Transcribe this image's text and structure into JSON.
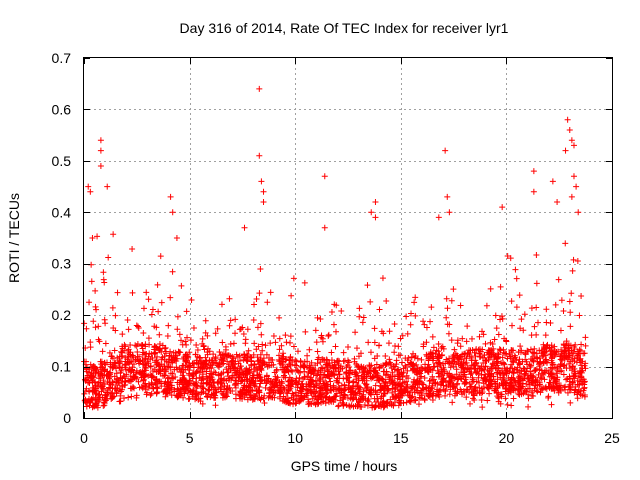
{
  "chart_data": {
    "type": "scatter",
    "title": "Day 316 of 2014, Rate Of TEC Index for receiver lyr1",
    "xlabel": "GPS time / hours",
    "ylabel": "ROTI / TECUs",
    "xlim": [
      0,
      25
    ],
    "ylim": [
      0,
      0.7
    ],
    "xticks": [
      0,
      5,
      10,
      15,
      20,
      25
    ],
    "yticks": [
      0,
      0.1,
      0.2,
      0.3,
      0.4,
      0.5,
      0.6,
      0.7
    ],
    "xtick_labels": [
      "0",
      "5",
      "10",
      "15",
      "20",
      "25"
    ],
    "ytick_labels": [
      "0",
      "0.1",
      "0.2",
      "0.3",
      "0.4",
      "0.5",
      "0.6",
      "0.7"
    ],
    "grid": true,
    "marker": "+",
    "color": "#ff0000",
    "x_range_of_data": [
      0,
      23.75
    ],
    "series": [
      {
        "name": "ROTI",
        "envelope": [
          {
            "x": 0.0,
            "base": 0.06,
            "p95": 0.26
          },
          {
            "x": 0.5,
            "base": 0.06,
            "p95": 0.34
          },
          {
            "x": 1.0,
            "base": 0.07,
            "p95": 0.32
          },
          {
            "x": 1.5,
            "base": 0.09,
            "p95": 0.3
          },
          {
            "x": 2.0,
            "base": 0.1,
            "p95": 0.28
          },
          {
            "x": 2.5,
            "base": 0.1,
            "p95": 0.27
          },
          {
            "x": 3.0,
            "base": 0.1,
            "p95": 0.26
          },
          {
            "x": 4.0,
            "base": 0.09,
            "p95": 0.3
          },
          {
            "x": 5.0,
            "base": 0.08,
            "p95": 0.24
          },
          {
            "x": 6.0,
            "base": 0.08,
            "p95": 0.2
          },
          {
            "x": 7.0,
            "base": 0.08,
            "p95": 0.24
          },
          {
            "x": 7.5,
            "base": 0.08,
            "p95": 0.28
          },
          {
            "x": 8.0,
            "base": 0.08,
            "p95": 0.26
          },
          {
            "x": 8.5,
            "base": 0.08,
            "p95": 0.3
          },
          {
            "x": 9.0,
            "base": 0.08,
            "p95": 0.25
          },
          {
            "x": 10.0,
            "base": 0.07,
            "p95": 0.22
          },
          {
            "x": 11.0,
            "base": 0.07,
            "p95": 0.24
          },
          {
            "x": 12.0,
            "base": 0.07,
            "p95": 0.2
          },
          {
            "x": 13.0,
            "base": 0.06,
            "p95": 0.22
          },
          {
            "x": 14.0,
            "base": 0.06,
            "p95": 0.24
          },
          {
            "x": 15.0,
            "base": 0.07,
            "p95": 0.22
          },
          {
            "x": 16.0,
            "base": 0.08,
            "p95": 0.24
          },
          {
            "x": 17.0,
            "base": 0.09,
            "p95": 0.3
          },
          {
            "x": 18.0,
            "base": 0.09,
            "p95": 0.27
          },
          {
            "x": 19.0,
            "base": 0.09,
            "p95": 0.24
          },
          {
            "x": 20.0,
            "base": 0.09,
            "p95": 0.28
          },
          {
            "x": 21.0,
            "base": 0.09,
            "p95": 0.26
          },
          {
            "x": 22.0,
            "base": 0.1,
            "p95": 0.3
          },
          {
            "x": 23.0,
            "base": 0.1,
            "p95": 0.34
          },
          {
            "x": 23.75,
            "base": 0.08,
            "p95": 0.26
          }
        ],
        "outliers": [
          {
            "x": 0.2,
            "y": 0.45
          },
          {
            "x": 0.3,
            "y": 0.44
          },
          {
            "x": 0.4,
            "y": 0.35
          },
          {
            "x": 0.8,
            "y": 0.54
          },
          {
            "x": 0.8,
            "y": 0.52
          },
          {
            "x": 0.8,
            "y": 0.49
          },
          {
            "x": 1.1,
            "y": 0.45
          },
          {
            "x": 4.1,
            "y": 0.43
          },
          {
            "x": 4.2,
            "y": 0.4
          },
          {
            "x": 4.4,
            "y": 0.35
          },
          {
            "x": 7.6,
            "y": 0.37
          },
          {
            "x": 8.3,
            "y": 0.64
          },
          {
            "x": 8.3,
            "y": 0.51
          },
          {
            "x": 8.4,
            "y": 0.46
          },
          {
            "x": 8.5,
            "y": 0.44
          },
          {
            "x": 8.5,
            "y": 0.42
          },
          {
            "x": 11.4,
            "y": 0.47
          },
          {
            "x": 11.4,
            "y": 0.37
          },
          {
            "x": 13.6,
            "y": 0.4
          },
          {
            "x": 13.8,
            "y": 0.42
          },
          {
            "x": 13.8,
            "y": 0.39
          },
          {
            "x": 16.8,
            "y": 0.39
          },
          {
            "x": 17.1,
            "y": 0.52
          },
          {
            "x": 17.2,
            "y": 0.43
          },
          {
            "x": 17.3,
            "y": 0.4
          },
          {
            "x": 19.8,
            "y": 0.41
          },
          {
            "x": 21.3,
            "y": 0.48
          },
          {
            "x": 21.3,
            "y": 0.44
          },
          {
            "x": 22.2,
            "y": 0.46
          },
          {
            "x": 22.4,
            "y": 0.42
          },
          {
            "x": 22.8,
            "y": 0.52
          },
          {
            "x": 22.9,
            "y": 0.58
          },
          {
            "x": 23.0,
            "y": 0.56
          },
          {
            "x": 23.1,
            "y": 0.54
          },
          {
            "x": 23.2,
            "y": 0.53
          },
          {
            "x": 23.2,
            "y": 0.47
          },
          {
            "x": 23.3,
            "y": 0.45
          },
          {
            "x": 23.1,
            "y": 0.43
          },
          {
            "x": 23.4,
            "y": 0.4
          }
        ]
      }
    ]
  }
}
